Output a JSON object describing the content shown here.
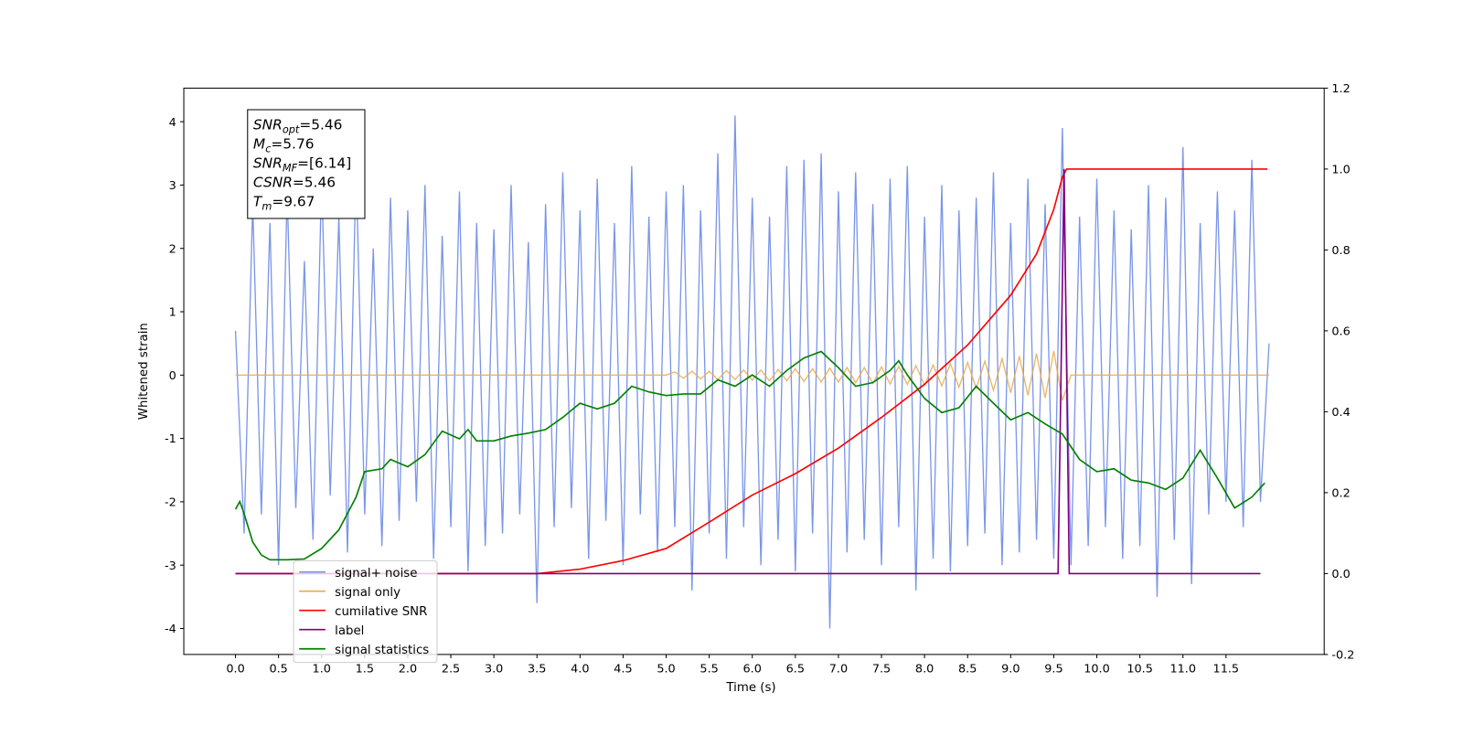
{
  "chart_data": {
    "type": "line",
    "xlabel": "Time (s)",
    "ylabel": "Whitened strain",
    "xlim": [
      -0.6,
      12.64
    ],
    "ylim": [
      -4.41,
      4.53
    ],
    "y2lim": [
      -0.2,
      1.2
    ],
    "xticks": [
      {
        "value": 0,
        "label": "0.0"
      },
      0.5,
      {
        "value": 1,
        "label": "1.0"
      },
      1.5,
      {
        "value": 2,
        "label": "2.0"
      },
      2.5,
      {
        "value": 3,
        "label": "3.0"
      },
      3.5,
      {
        "value": 4,
        "label": "4.0"
      },
      4.5,
      {
        "value": 5,
        "label": "5.0"
      },
      5.5,
      {
        "value": 6,
        "label": "6.0"
      },
      6.5,
      {
        "value": 7,
        "label": "7.0"
      },
      7.5,
      {
        "value": 8,
        "label": "8.0"
      },
      8.5,
      {
        "value": 9,
        "label": "9.0"
      },
      9.5,
      {
        "value": 10,
        "label": "10.0"
      },
      10.5,
      {
        "value": 11,
        "label": "11.0"
      },
      11.5
    ],
    "yticks": [
      -4,
      -3,
      -2,
      -1,
      0,
      1,
      2,
      3,
      4
    ],
    "y2ticks": [
      -0.2,
      {
        "value": 0,
        "label": "0.0"
      },
      0.2,
      0.4,
      0.6,
      0.8,
      {
        "value": 1,
        "label": "1.0"
      },
      1.2
    ],
    "legend": "lower left",
    "x": [
      0,
      0.1,
      0.2,
      0.3,
      0.4,
      0.5,
      0.6,
      0.7,
      0.8,
      0.9,
      1,
      1.1,
      1.2,
      1.3,
      1.4,
      1.5,
      1.6,
      1.7,
      1.8,
      1.9,
      2,
      2.1,
      2.2,
      2.3,
      2.4,
      2.5,
      2.6,
      2.7,
      2.8,
      2.9,
      3,
      3.1,
      3.2,
      3.3,
      3.4,
      3.5,
      3.6,
      3.7,
      3.8,
      3.9,
      4,
      4.1,
      4.2,
      4.3,
      4.4,
      4.5,
      4.6,
      4.7,
      4.8,
      4.9,
      5,
      5.1,
      5.2,
      5.3,
      5.4,
      5.5,
      5.6,
      5.7,
      5.8,
      5.9,
      6,
      6.1,
      6.2,
      6.3,
      6.4,
      6.5,
      6.6,
      6.7,
      6.8,
      6.9,
      7,
      7.1,
      7.2,
      7.3,
      7.4,
      7.5,
      7.6,
      7.7,
      7.8,
      7.9,
      8,
      8.1,
      8.2,
      8.3,
      8.4,
      8.5,
      8.6,
      8.7,
      8.8,
      8.9,
      9,
      9.1,
      9.2,
      9.3,
      9.4,
      9.5,
      9.6,
      9.7,
      9.8,
      9.9,
      10,
      10.1,
      10.2,
      10.3,
      10.4,
      10.5,
      10.6,
      10.7,
      10.8,
      10.9,
      11,
      11.1,
      11.2,
      11.3,
      11.4,
      11.5,
      11.6,
      11.7,
      11.8,
      11.9,
      12
    ],
    "series": [
      {
        "name": "signal+ noise",
        "color": "#7b96e8",
        "values": [
          0.7,
          -2.5,
          2.7,
          -2.2,
          2.4,
          -3.0,
          2.9,
          -2.1,
          1.8,
          -2.6,
          3.1,
          -1.9,
          2.5,
          -2.8,
          3.3,
          -2.2,
          2.0,
          -2.7,
          2.8,
          -2.3,
          2.6,
          -2.0,
          3.0,
          -2.9,
          2.2,
          -2.4,
          2.9,
          -3.1,
          2.4,
          -2.7,
          2.3,
          -2.5,
          3.0,
          -2.2,
          2.1,
          -3.6,
          2.7,
          -2.4,
          3.2,
          -2.1,
          2.6,
          -2.9,
          3.1,
          -2.3,
          2.4,
          -3.0,
          3.3,
          -2.2,
          2.5,
          -2.8,
          2.9,
          -2.4,
          3.0,
          -3.4,
          2.6,
          -2.5,
          3.5,
          -2.9,
          4.1,
          -2.4,
          2.8,
          -3.0,
          2.5,
          -2.6,
          3.3,
          -3.1,
          3.4,
          -2.5,
          3.5,
          -4.0,
          2.9,
          -2.8,
          3.2,
          -2.6,
          2.7,
          -3.0,
          3.1,
          -2.4,
          3.3,
          -3.4,
          2.5,
          -2.9,
          3.0,
          -3.1,
          2.6,
          -2.7,
          2.8,
          -2.5,
          3.2,
          -3.0,
          2.4,
          -2.8,
          3.1,
          -2.6,
          2.7,
          -2.9,
          3.9,
          -3.0,
          2.5,
          -2.7,
          3.1,
          -2.4,
          2.6,
          -2.9,
          2.3,
          -2.7,
          3.0,
          -3.5,
          2.8,
          -2.6,
          3.6,
          -3.3,
          2.4,
          -2.2,
          2.9,
          -2.0,
          2.6,
          -2.4,
          3.4,
          -2.0,
          0.5
        ]
      },
      {
        "name": "signal only",
        "color": "#e8a94c",
        "values": [
          0,
          0,
          0,
          0,
          0,
          0,
          0,
          0,
          0,
          0,
          0,
          0,
          0,
          0,
          0,
          0,
          0,
          0,
          0,
          0,
          0,
          0,
          0,
          0,
          0,
          0,
          0,
          0,
          0,
          0,
          0,
          0,
          0,
          0,
          0,
          0,
          0,
          0,
          0,
          0,
          0,
          0,
          0,
          0,
          0,
          0,
          0,
          0,
          0,
          0,
          0,
          0.05,
          -0.05,
          0.06,
          -0.06,
          0.06,
          -0.07,
          0.07,
          -0.07,
          0.08,
          -0.08,
          0.08,
          -0.09,
          0.09,
          -0.09,
          0.1,
          -0.1,
          0.1,
          -0.11,
          0.11,
          -0.11,
          0.12,
          -0.12,
          0.12,
          -0.13,
          0.13,
          -0.14,
          0.14,
          -0.15,
          0.15,
          -0.16,
          0.16,
          -0.17,
          0.18,
          -0.19,
          0.2,
          -0.21,
          0.22,
          -0.24,
          0.26,
          -0.28,
          0.3,
          -0.32,
          0.34,
          -0.36,
          0.38,
          -0.4,
          0,
          0,
          0,
          0,
          0,
          0,
          0,
          0,
          0,
          0,
          0,
          0,
          0,
          0,
          0,
          0,
          0,
          0,
          0,
          0,
          0,
          0,
          0,
          0
        ]
      },
      {
        "name": "cumilative SNR",
        "color": "#ff0000",
        "axis": "y2",
        "x": [
          0,
          3.5,
          4.0,
          4.5,
          5.0,
          5.5,
          6.0,
          6.5,
          7.0,
          7.5,
          8.0,
          8.5,
          9.0,
          9.3,
          9.5,
          9.6,
          9.65,
          11.98
        ],
        "values": [
          0,
          0,
          0.011,
          0.032,
          0.062,
          0.127,
          0.194,
          0.247,
          0.31,
          0.386,
          0.468,
          0.565,
          0.688,
          0.79,
          0.9,
          0.98,
          1.0,
          1.0
        ]
      },
      {
        "name": "label",
        "color": "#800080",
        "axis": "y2",
        "x": [
          0,
          9.55,
          9.62,
          9.68,
          11.9
        ],
        "values": [
          0,
          0,
          1.0,
          0,
          0
        ]
      },
      {
        "name": "signal statistics",
        "color": "#008000",
        "axis": "y2",
        "x": [
          0,
          0.05,
          0.1,
          0.2,
          0.3,
          0.4,
          0.6,
          0.8,
          1.0,
          1.2,
          1.4,
          1.5,
          1.7,
          1.8,
          2.0,
          2.2,
          2.4,
          2.6,
          2.7,
          2.8,
          3.0,
          3.2,
          3.4,
          3.6,
          3.8,
          4.0,
          4.2,
          4.4,
          4.6,
          4.8,
          5.0,
          5.2,
          5.4,
          5.6,
          5.8,
          6.0,
          6.2,
          6.4,
          6.6,
          6.8,
          7.0,
          7.2,
          7.4,
          7.6,
          7.7,
          7.8,
          8.0,
          8.2,
          8.4,
          8.6,
          8.8,
          9.0,
          9.2,
          9.4,
          9.6,
          9.8,
          10.0,
          10.2,
          10.4,
          10.6,
          10.8,
          11.0,
          11.2,
          11.4,
          11.6,
          11.8,
          11.95
        ],
        "values": [
          0.159,
          0.178,
          0.148,
          0.078,
          0.046,
          0.034,
          0.034,
          0.036,
          0.062,
          0.108,
          0.189,
          0.252,
          0.259,
          0.282,
          0.264,
          0.294,
          0.352,
          0.333,
          0.356,
          0.328,
          0.328,
          0.34,
          0.347,
          0.356,
          0.386,
          0.421,
          0.407,
          0.421,
          0.463,
          0.449,
          0.44,
          0.444,
          0.444,
          0.479,
          0.463,
          0.491,
          0.463,
          0.502,
          0.533,
          0.549,
          0.509,
          0.463,
          0.472,
          0.502,
          0.526,
          0.491,
          0.433,
          0.398,
          0.41,
          0.463,
          0.421,
          0.38,
          0.398,
          0.37,
          0.345,
          0.282,
          0.252,
          0.259,
          0.231,
          0.224,
          0.208,
          0.236,
          0.305,
          0.236,
          0.162,
          0.189,
          0.224
        ]
      }
    ],
    "annotations": [
      {
        "name": "SNR",
        "sub": "opt",
        "text": "=5.46"
      },
      {
        "name": "M",
        "sub": "c",
        "text": "=5.76"
      },
      {
        "name": "SNR",
        "sub": "MF",
        "text": "=[6.14]"
      },
      {
        "name": "CSNR",
        "text": "=5.46"
      },
      {
        "name": "T",
        "sub": "m",
        "text": "=9.67"
      }
    ]
  }
}
